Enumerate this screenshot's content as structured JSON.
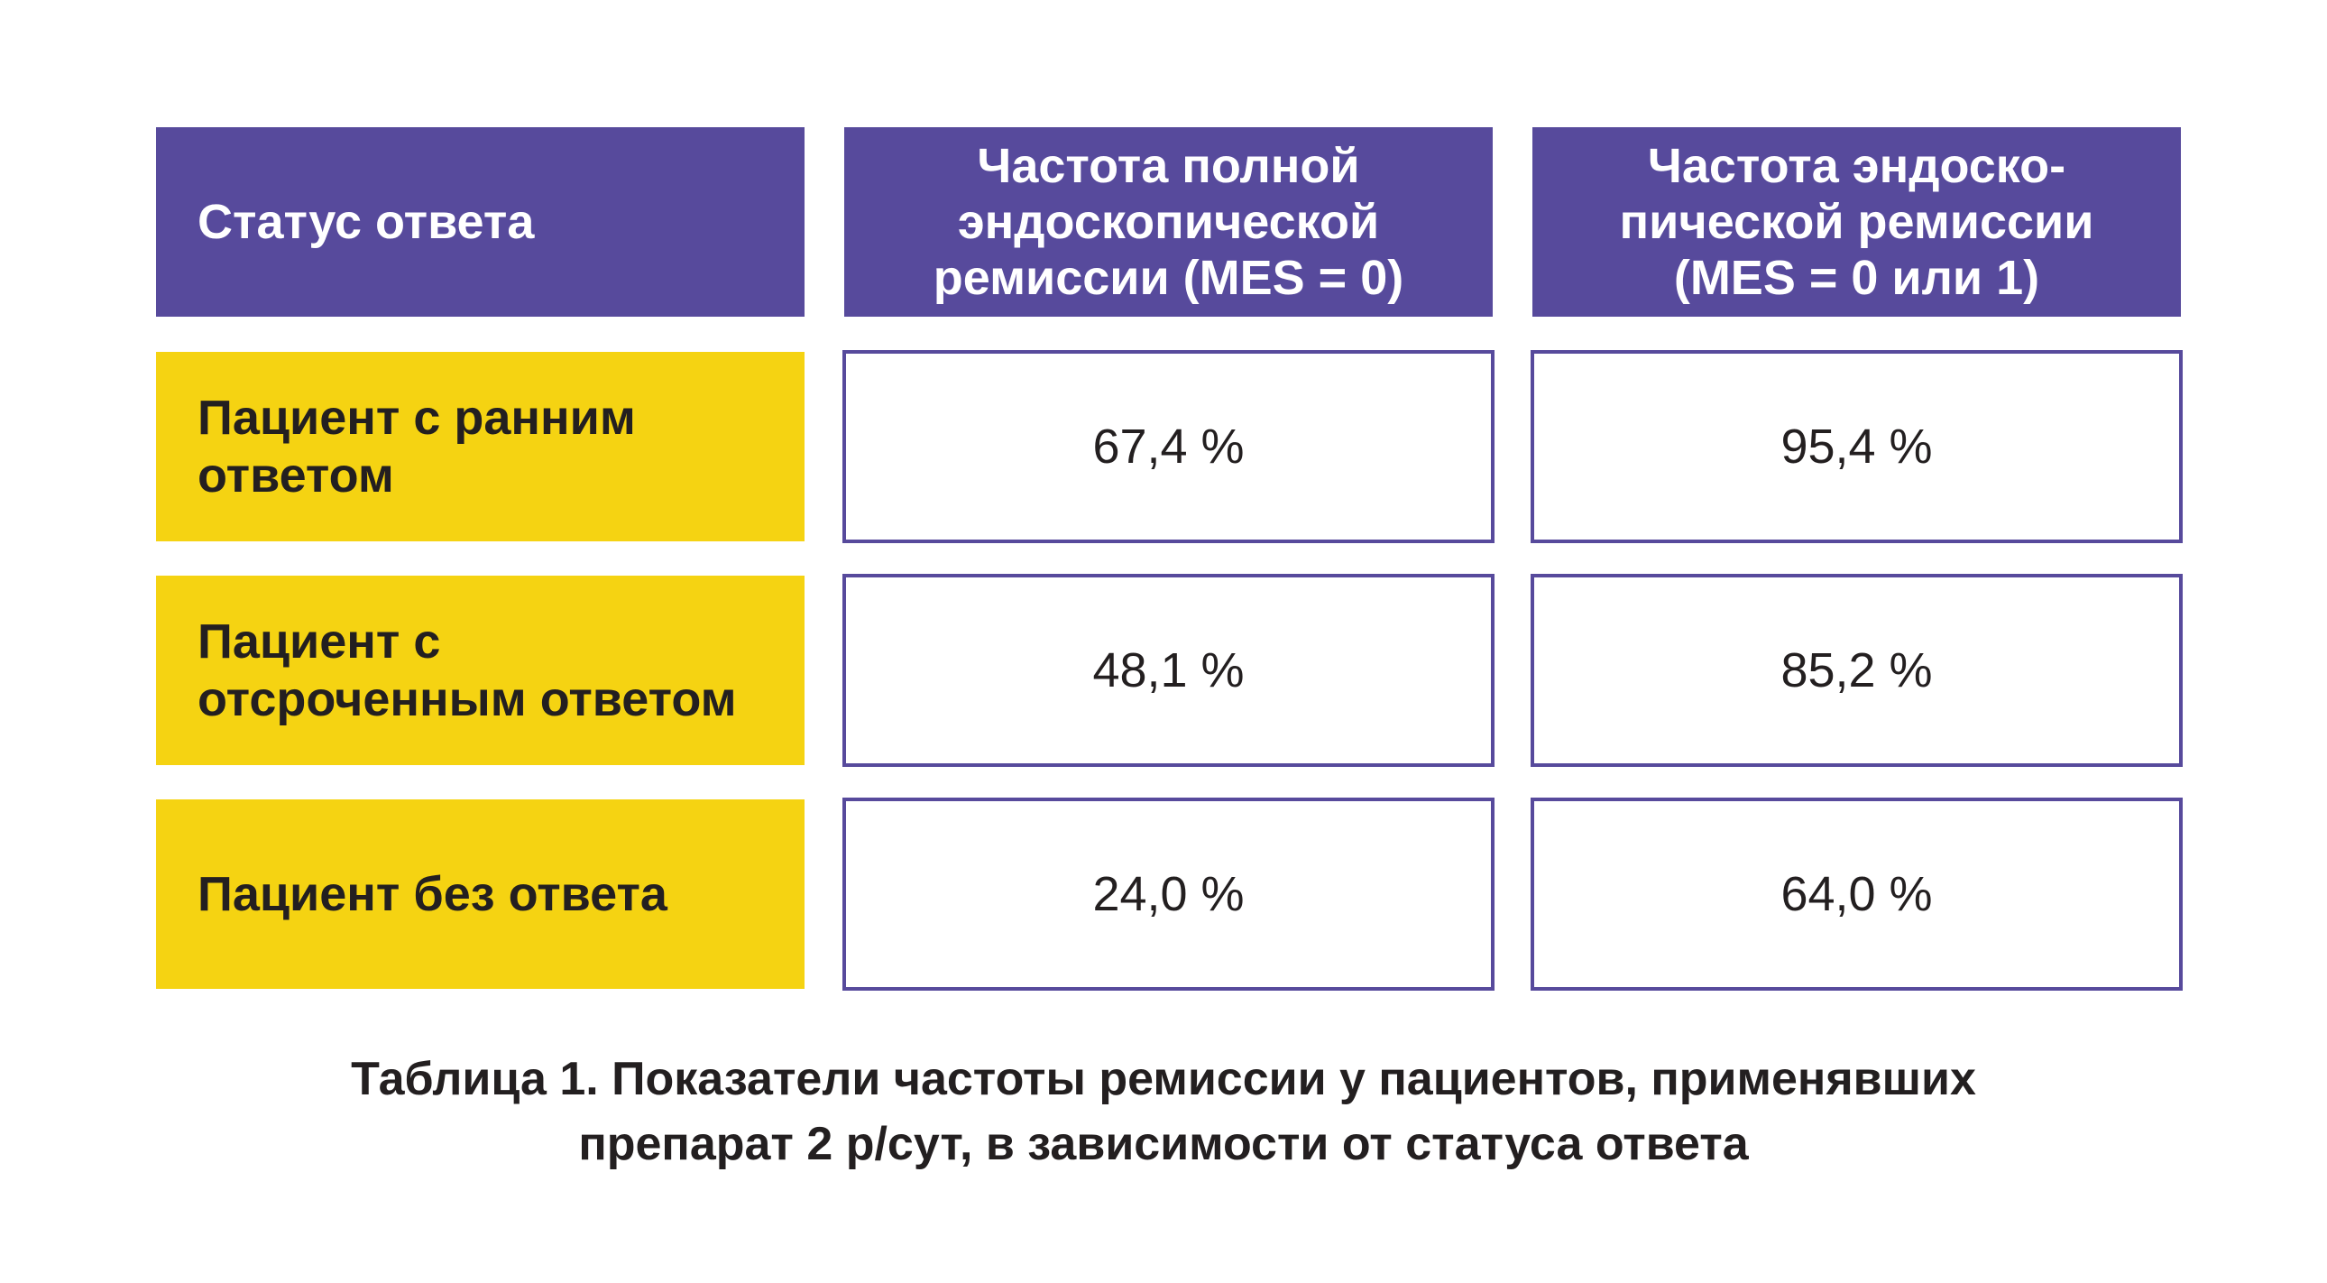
{
  "table": {
    "type": "table",
    "columns": [
      "Статус ответа",
      "Частота полной\nэндоскопической\nремиссии (MES = 0)",
      "Частота эндоско-\nпической ремиссии\n(MES = 0 или 1)"
    ],
    "rows": [
      {
        "label": "Пациент с ранним\nответом",
        "values": [
          "67,4 %",
          "95,4 %"
        ]
      },
      {
        "label": "Пациент с\nотсроченным ответом",
        "values": [
          "48,1 %",
          "85,2 %"
        ]
      },
      {
        "label": "Пациент без ответа",
        "values": [
          "24,0 %",
          "64,0 %"
        ]
      }
    ],
    "caption": "Таблица 1. Показатели частоты ремиссии у пациентов, применявших\nпрепарат 2 р/сут, в зависимости от статуса ответа"
  },
  "colors": {
    "header_bg": "#574a9c",
    "label_bg": "#f5d312",
    "border": "#574a9c",
    "text": "#231f20"
  }
}
